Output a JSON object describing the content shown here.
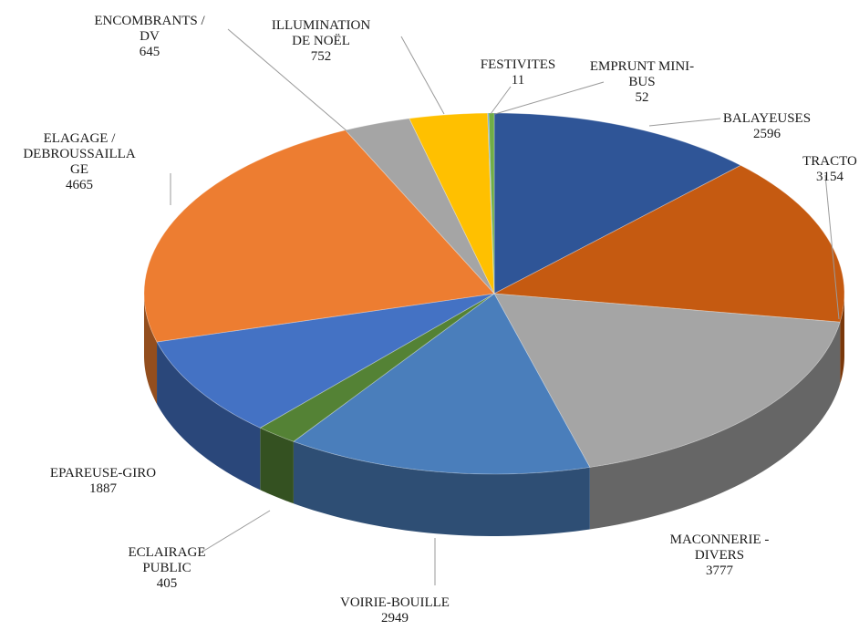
{
  "chart_data": {
    "type": "pie",
    "variant": "3d",
    "title": "",
    "slices": [
      {
        "label": [
          "BALAYEUSES"
        ],
        "value": 2596,
        "color": "#2F5597"
      },
      {
        "label": [
          "TRACTO"
        ],
        "value": 3154,
        "color": "#C55A11"
      },
      {
        "label": [
          "MACONNERIE -",
          "DIVERS"
        ],
        "value": 3777,
        "color": "#A5A5A5"
      },
      {
        "label": [
          "VOIRIE-BOUILLE"
        ],
        "value": 2949,
        "color": "#4A7EBB"
      },
      {
        "label": [
          "ECLAIRAGE",
          "PUBLIC"
        ],
        "value": 405,
        "color": "#548235"
      },
      {
        "label": [
          "EPAREUSE-GIRO"
        ],
        "value": 1887,
        "color": "#4472C4"
      },
      {
        "label": [
          "ELAGAGE /",
          "DEBROUSSAILLA",
          "GE"
        ],
        "value": 4665,
        "color": "#ED7D31"
      },
      {
        "label": [
          "ENCOMBRANTS /",
          "DV"
        ],
        "value": 645,
        "color": "#A5A5A5"
      },
      {
        "label": [
          "ILLUMINATION",
          "DE NOËL"
        ],
        "value": 752,
        "color": "#FFC000"
      },
      {
        "label": [
          "FESTIVITES"
        ],
        "value": 11,
        "color": "#5B9BD5"
      },
      {
        "label": [
          "EMPRUNT MINI-",
          "BUS"
        ],
        "value": 52,
        "color": "#70AD47"
      }
    ]
  }
}
